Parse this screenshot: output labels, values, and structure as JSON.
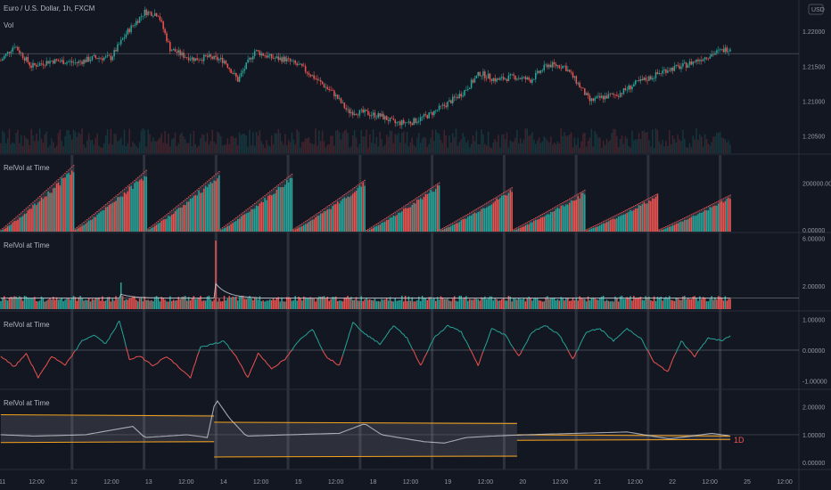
{
  "header": {
    "symbol_title": "Euro / U.S. Dollar, 1h, FXCM",
    "volume_label": "Vol",
    "currency_badge": "USD"
  },
  "colors": {
    "background": "#131722",
    "up": "#26a69a",
    "down": "#ef5350",
    "grid_separator": "#2a2e39",
    "session_divider": "#363a45",
    "band_orange": "#f7a21b",
    "avg_line": "#d1d4dc"
  },
  "panes": [
    {
      "title": "",
      "y_ticks": [
        "1.22000",
        "1.21500",
        "1.21000",
        "1.20500"
      ]
    },
    {
      "title": "RelVol at Time",
      "y_ticks": [
        "200000.00000",
        "0.00000"
      ]
    },
    {
      "title": "RelVol at Time",
      "y_ticks": [
        "6.00000",
        "2.00000"
      ]
    },
    {
      "title": "RelVol at Time",
      "y_ticks": [
        "1.00000",
        "0.00000",
        "-1.00000"
      ]
    },
    {
      "title": "RelVol at Time",
      "y_ticks": [
        "2.00000",
        "1.00000",
        "0.00000"
      ]
    }
  ],
  "band_label": "1D",
  "x_axis": {
    "ticks": [
      "11",
      "12:00",
      "12",
      "12:00",
      "13",
      "12:00",
      "14",
      "12:00",
      "15",
      "12:00",
      "18",
      "12:00",
      "19",
      "12:00",
      "20",
      "12:00",
      "21",
      "12:00",
      "22",
      "12:00",
      "25",
      "12:00"
    ]
  },
  "chart_data": [
    {
      "type": "candlestick",
      "title": "Euro / U.S. Dollar, 1h, FXCM",
      "ylim": [
        1.2025,
        1.2245
      ],
      "y_ticks": [
        1.22,
        1.215,
        1.21,
        1.205
      ],
      "close_path_keypoints": [
        [
          0,
          1.2158
        ],
        [
          8,
          1.218
        ],
        [
          18,
          1.215
        ],
        [
          30,
          1.2158
        ],
        [
          45,
          1.2155
        ],
        [
          55,
          1.2162
        ],
        [
          65,
          1.2162
        ],
        [
          75,
          1.22
        ],
        [
          85,
          1.2228
        ],
        [
          93,
          1.2225
        ],
        [
          100,
          1.2175
        ],
        [
          108,
          1.2165
        ],
        [
          115,
          1.216
        ],
        [
          122,
          1.2163
        ],
        [
          132,
          1.2158
        ],
        [
          140,
          1.213
        ],
        [
          150,
          1.2172
        ],
        [
          160,
          1.2162
        ],
        [
          168,
          1.216
        ],
        [
          178,
          1.2148
        ],
        [
          187,
          1.213
        ],
        [
          197,
          1.211
        ],
        [
          205,
          1.2085
        ],
        [
          215,
          1.2083
        ],
        [
          225,
          1.2078
        ],
        [
          233,
          1.2068
        ],
        [
          243,
          1.207
        ],
        [
          253,
          1.208
        ],
        [
          263,
          1.2095
        ],
        [
          273,
          1.2112
        ],
        [
          283,
          1.214
        ],
        [
          293,
          1.213
        ],
        [
          303,
          1.2135
        ],
        [
          313,
          1.213
        ],
        [
          323,
          1.2152
        ],
        [
          333,
          1.215
        ],
        [
          341,
          1.2125
        ],
        [
          348,
          1.21
        ],
        [
          355,
          1.2105
        ],
        [
          365,
          1.211
        ],
        [
          375,
          1.2125
        ],
        [
          385,
          1.2135
        ],
        [
          393,
          1.2145
        ],
        [
          403,
          1.215
        ],
        [
          413,
          1.216
        ],
        [
          423,
          1.217
        ],
        [
          433,
          1.2178
        ],
        [
          443,
          1.2172
        ],
        [
          453,
          1.217
        ],
        [
          460,
          1.2172
        ]
      ],
      "reference_price": 1.2168,
      "volume_max": 1.0
    },
    {
      "type": "bar",
      "title": "RelVol at Time",
      "description_series": "cumulative volume per session",
      "ylim": [
        0,
        300000
      ],
      "y_ticks": [
        200000,
        0
      ],
      "sessions": 10,
      "bars_per_session": 24,
      "session_peaks": [
        265000,
        245000,
        240000,
        230000,
        205000,
        195000,
        175000,
        165000,
        150000,
        145000
      ]
    },
    {
      "type": "bar",
      "title": "RelVol at Time",
      "ylim": [
        0,
        6.4
      ],
      "y_ticks": [
        6,
        2
      ],
      "baseline": 1.0,
      "spikes": [
        {
          "x_index": 71,
          "value": 2.3
        },
        {
          "x_index": 127,
          "value": 5.8
        }
      ]
    },
    {
      "type": "line",
      "title": "RelVol at Time",
      "ylim": [
        -1.25,
        1.25
      ],
      "y_ticks": [
        1,
        0,
        -1
      ],
      "keypoints": [
        [
          0,
          -0.2
        ],
        [
          8,
          -0.55
        ],
        [
          15,
          -0.1
        ],
        [
          22,
          -0.9
        ],
        [
          30,
          -0.2
        ],
        [
          38,
          -0.5
        ],
        [
          48,
          0.3
        ],
        [
          55,
          0.5
        ],
        [
          62,
          0.2
        ],
        [
          70,
          0.95
        ],
        [
          76,
          -0.3
        ],
        [
          82,
          -0.2
        ],
        [
          90,
          -0.5
        ],
        [
          98,
          -0.2
        ],
        [
          106,
          -0.6
        ],
        [
          112,
          -0.9
        ],
        [
          118,
          0.1
        ],
        [
          126,
          0.2
        ],
        [
          132,
          0.3
        ],
        [
          140,
          -0.3
        ],
        [
          146,
          -0.9
        ],
        [
          152,
          -0.1
        ],
        [
          160,
          -0.6
        ],
        [
          168,
          -0.3
        ],
        [
          176,
          0.3
        ],
        [
          184,
          0.7
        ],
        [
          192,
          -0.2
        ],
        [
          200,
          -0.5
        ],
        [
          208,
          0.9
        ],
        [
          216,
          0.5
        ],
        [
          224,
          0.2
        ],
        [
          232,
          0.8
        ],
        [
          240,
          0.4
        ],
        [
          248,
          -0.5
        ],
        [
          256,
          0.4
        ],
        [
          264,
          0.8
        ],
        [
          272,
          0.6
        ],
        [
          282,
          -0.5
        ],
        [
          290,
          0.7
        ],
        [
          298,
          0.5
        ],
        [
          306,
          -0.2
        ],
        [
          314,
          0.6
        ],
        [
          322,
          0.8
        ],
        [
          330,
          0.5
        ],
        [
          338,
          -0.3
        ],
        [
          346,
          0.6
        ],
        [
          354,
          0.7
        ],
        [
          362,
          0.3
        ],
        [
          370,
          0.7
        ],
        [
          378,
          0.4
        ],
        [
          386,
          -0.4
        ],
        [
          394,
          -0.7
        ],
        [
          402,
          0.3
        ],
        [
          410,
          -0.2
        ],
        [
          418,
          0.4
        ],
        [
          426,
          0.3
        ],
        [
          432,
          0.5
        ]
      ]
    },
    {
      "type": "area",
      "title": "RelVol at Time",
      "ylim": [
        -0.25,
        2.6
      ],
      "y_ticks": [
        2,
        1,
        0
      ],
      "segments": [
        {
          "from": 0,
          "to": 126,
          "upper": 1.72,
          "lower": 0.72
        },
        {
          "from": 126,
          "to": 305,
          "upper": 1.45,
          "lower": 0.2
        },
        {
          "from": 305,
          "to": 432,
          "upper": 1.0,
          "lower": 0.8
        }
      ],
      "avg_keypoints": [
        [
          0,
          1.0
        ],
        [
          20,
          0.95
        ],
        [
          50,
          1.0
        ],
        [
          78,
          1.3
        ],
        [
          85,
          0.9
        ],
        [
          110,
          1.0
        ],
        [
          122,
          0.9
        ],
        [
          127,
          2.3
        ],
        [
          135,
          1.6
        ],
        [
          145,
          0.95
        ],
        [
          170,
          1.0
        ],
        [
          200,
          1.05
        ],
        [
          215,
          1.4
        ],
        [
          225,
          1.0
        ],
        [
          250,
          0.75
        ],
        [
          262,
          0.7
        ],
        [
          275,
          0.9
        ],
        [
          290,
          0.95
        ],
        [
          310,
          1.0
        ],
        [
          340,
          1.05
        ],
        [
          370,
          1.1
        ],
        [
          395,
          0.85
        ],
        [
          420,
          1.05
        ],
        [
          432,
          0.95
        ]
      ]
    }
  ]
}
